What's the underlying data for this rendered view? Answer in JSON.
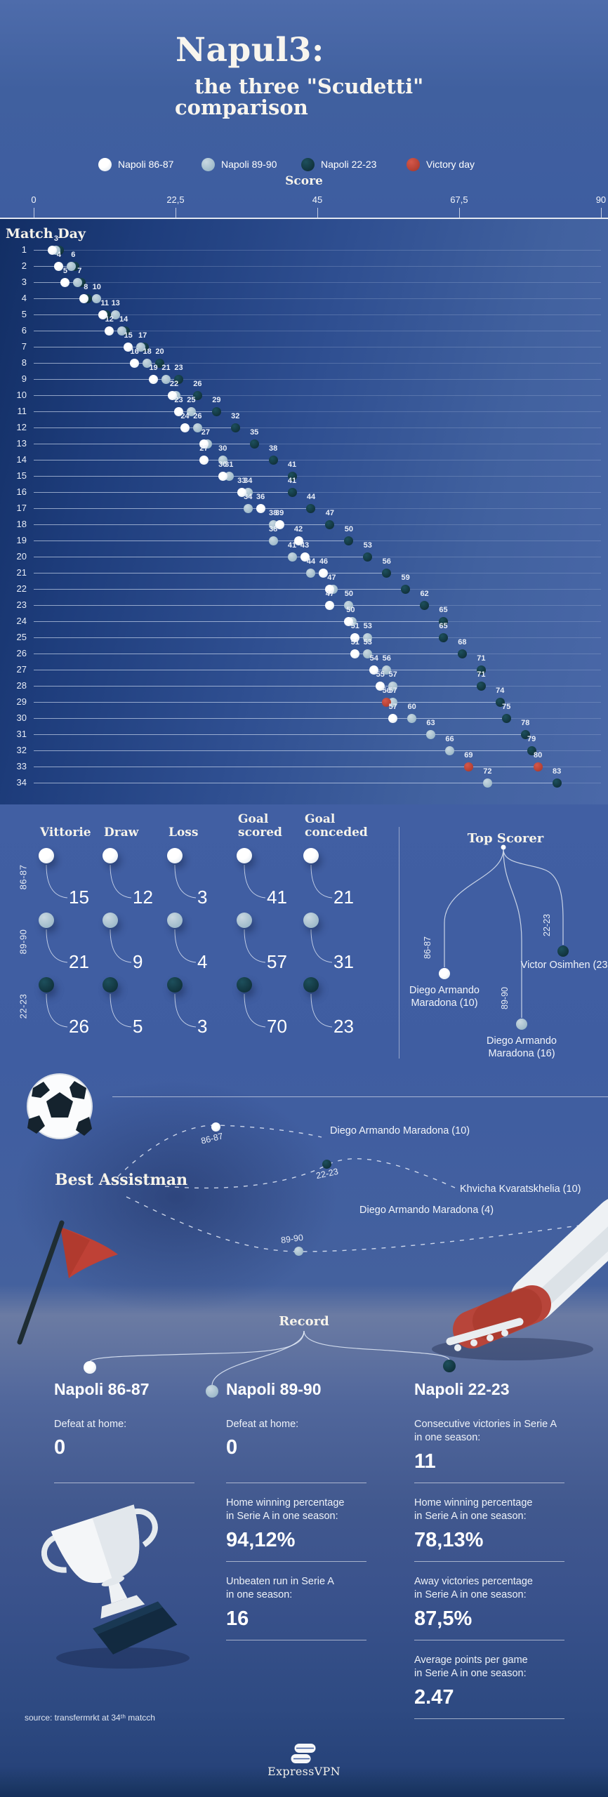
{
  "title": {
    "line1": "Napul3:",
    "line2": "the three \"Scudetti\"",
    "line3": "comparison"
  },
  "legend": {
    "items": [
      {
        "key": "w",
        "label": "Napoli 86-87",
        "color": "#ffffff"
      },
      {
        "key": "l",
        "label": "Napoli 89-90",
        "color": "#a9c1cf"
      },
      {
        "key": "d",
        "label": "Napoli 22-23",
        "color": "#123a43"
      },
      {
        "key": "r",
        "label": "Victory day",
        "color": "#c04135"
      }
    ]
  },
  "axis": {
    "label": "Score",
    "ylabel": "Match Day",
    "ticks": [
      "0",
      "22,5",
      "45",
      "67,5",
      "90"
    ],
    "tick_values": [
      0,
      22.5,
      45,
      67.5,
      90
    ]
  },
  "chart_data": {
    "type": "scatter",
    "title": "Napul3: the three \"Scudetti\" comparison",
    "xlabel": "Score",
    "ylabel": "Match Day",
    "xlim": [
      0,
      90
    ],
    "x_ticks": [
      0,
      22.5,
      45,
      67.5,
      90
    ],
    "match_days": 34,
    "legend_position": "top",
    "series": [
      {
        "name": "Napoli 86-87",
        "key": "w",
        "color": "#ffffff",
        "cumulative_points_by_match_day": [
          3,
          4,
          5,
          8,
          11,
          12,
          15,
          16,
          19,
          22,
          23,
          24,
          27,
          27,
          30,
          33,
          36,
          39,
          42,
          43,
          46,
          47,
          47,
          50,
          51,
          51,
          54,
          55,
          56,
          57
        ],
        "victory_match_day": 29
      },
      {
        "name": "Napoli 89-90",
        "key": "l",
        "color": "#a9c1cf",
        "cumulative_points_by_match_day": [
          3,
          6,
          7,
          10,
          13,
          14,
          17,
          18,
          21,
          22,
          25,
          26,
          27,
          30,
          31,
          34,
          34,
          38,
          38,
          41,
          44,
          47,
          50,
          50,
          53,
          53,
          56,
          57,
          57,
          60,
          63,
          66,
          69,
          72
        ],
        "victory_match_day": 33
      },
      {
        "name": "Napoli 22-23",
        "key": "d",
        "color": "#123a43",
        "cumulative_points_by_match_day": [
          3,
          6,
          7,
          8,
          11,
          14,
          17,
          20,
          23,
          26,
          29,
          32,
          35,
          38,
          41,
          41,
          44,
          47,
          50,
          53,
          56,
          59,
          62,
          65,
          65,
          68,
          71,
          71,
          74,
          75,
          78,
          79,
          80,
          83
        ],
        "victory_match_day": 33
      }
    ],
    "victory_day_color": "#c04135"
  },
  "table": {
    "headers": [
      "Vittorie",
      "Draw",
      "Loss",
      "Goal\nscored",
      "Goal\nconceded"
    ],
    "row_labels": [
      "86-87",
      "89-90",
      "22-23"
    ],
    "rows": [
      [
        "15",
        "12",
        "3",
        "41",
        "21"
      ],
      [
        "21",
        "9",
        "4",
        "57",
        "31"
      ],
      [
        "26",
        "5",
        "3",
        "70",
        "23"
      ]
    ]
  },
  "top_scorer": {
    "title": "Top Scorer",
    "entries": [
      {
        "season": "86-87",
        "player": "Diego Armando Maradona (10)"
      },
      {
        "season": "89-90",
        "player": "Diego Armando Maradona (16)"
      },
      {
        "season": "22-23",
        "player": "Victor Osimhen (23)"
      }
    ]
  },
  "best_assistman": {
    "title": "Best Assistman",
    "entries": [
      {
        "season": "86-87",
        "player": "Diego Armando Maradona (10)"
      },
      {
        "season": "22-23",
        "player": "Khvicha Kvaratskhelia (10)"
      },
      {
        "season": "89-90",
        "player": "Diego Armando Maradona (4)"
      }
    ]
  },
  "record": {
    "title": "Record",
    "columns": [
      {
        "season": "Napoli 86-87",
        "dot": "w",
        "blocks": [
          {
            "label": "Defeat at home:",
            "value": "0"
          }
        ]
      },
      {
        "season": "Napoli 89-90",
        "dot": "l",
        "blocks": [
          {
            "label": "Defeat at home:",
            "value": "0"
          },
          {
            "label": "Home winning percentage\nin Serie A in one season:",
            "value": "94,12%"
          },
          {
            "label": "Unbeaten run in Serie A\nin one season:",
            "value": "16"
          }
        ]
      },
      {
        "season": "Napoli 22-23",
        "dot": "d",
        "blocks": [
          {
            "label": "Consecutive victories in Serie A\nin one season:",
            "value": "11"
          },
          {
            "label": "Home winning percentage\nin Serie A in one season:",
            "value": "78,13%"
          },
          {
            "label": "Away victories percentage\nin Serie A in one season:",
            "value": "87,5%"
          },
          {
            "label": "Average points per game\nin Serie A in one season:",
            "value": "2.47"
          }
        ]
      }
    ]
  },
  "footer": {
    "source": "source: transfermrkt at 34ᵗʰ matcch",
    "brand": "ExpressVPN"
  }
}
